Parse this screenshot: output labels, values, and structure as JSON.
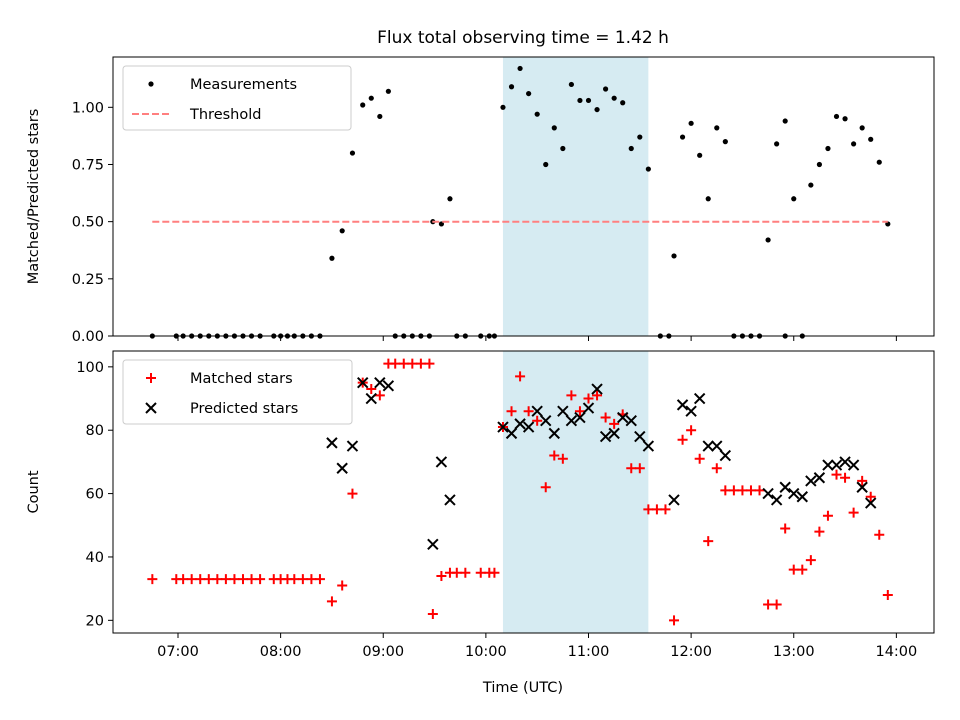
{
  "chart_data": {
    "title": "Flux total observing time = 1.42 h",
    "xlabel": "Time (UTC)",
    "x_tick_labels": [
      "07:00",
      "08:00",
      "09:00",
      "10:00",
      "11:00",
      "12:00",
      "13:00",
      "14:00"
    ],
    "highlight": {
      "start": "10:10",
      "end": "11:35",
      "color": "#add8e6"
    },
    "panels": [
      {
        "type": "scatter",
        "ylabel": "Matched/Predicted stars",
        "ylim": [
          0,
          1.22
        ],
        "y_ticks": [
          0.0,
          0.25,
          0.5,
          0.75,
          1.0
        ],
        "y_tick_labels": [
          "0.00",
          "0.25",
          "0.50",
          "0.75",
          "1.00"
        ],
        "legend": "top-left",
        "series": [
          {
            "name": "Measurements",
            "marker": "dot",
            "color": "#000000",
            "points": [
              [
                "06:45",
                0
              ],
              [
                "06:59",
                0
              ],
              [
                "07:03",
                0
              ],
              [
                "07:08",
                0
              ],
              [
                "07:13",
                0
              ],
              [
                "07:18",
                0
              ],
              [
                "07:23",
                0
              ],
              [
                "07:28",
                0
              ],
              [
                "07:33",
                0
              ],
              [
                "07:38",
                0
              ],
              [
                "07:43",
                0
              ],
              [
                "07:48",
                0
              ],
              [
                "07:56",
                0
              ],
              [
                "08:00",
                0
              ],
              [
                "08:04",
                0
              ],
              [
                "08:08",
                0
              ],
              [
                "08:13",
                0
              ],
              [
                "08:18",
                0
              ],
              [
                "08:23",
                0
              ],
              [
                "08:30",
                0.34
              ],
              [
                "08:36",
                0.46
              ],
              [
                "08:42",
                0.8
              ],
              [
                "08:48",
                1.01
              ],
              [
                "08:53",
                1.04
              ],
              [
                "08:58",
                0.96
              ],
              [
                "09:03",
                1.07
              ],
              [
                "09:07",
                0
              ],
              [
                "09:12",
                0
              ],
              [
                "09:17",
                0
              ],
              [
                "09:22",
                0
              ],
              [
                "09:27",
                0
              ],
              [
                "09:29",
                0.5
              ],
              [
                "09:34",
                0.49
              ],
              [
                "09:39",
                0.6
              ],
              [
                "09:43",
                0
              ],
              [
                "09:48",
                0
              ],
              [
                "09:57",
                0
              ],
              [
                "10:02",
                0
              ],
              [
                "10:05",
                0
              ],
              [
                "10:10",
                1.0
              ],
              [
                "10:15",
                1.09
              ],
              [
                "10:20",
                1.17
              ],
              [
                "10:25",
                1.06
              ],
              [
                "10:30",
                0.97
              ],
              [
                "10:35",
                0.75
              ],
              [
                "10:40",
                0.91
              ],
              [
                "10:45",
                0.82
              ],
              [
                "10:50",
                1.1
              ],
              [
                "10:55",
                1.03
              ],
              [
                "11:00",
                1.03
              ],
              [
                "11:05",
                0.99
              ],
              [
                "11:10",
                1.08
              ],
              [
                "11:15",
                1.04
              ],
              [
                "11:20",
                1.02
              ],
              [
                "11:25",
                0.82
              ],
              [
                "11:30",
                0.87
              ],
              [
                "11:35",
                0.73
              ],
              [
                "11:42",
                0
              ],
              [
                "11:47",
                0
              ],
              [
                "11:50",
                0.35
              ],
              [
                "11:55",
                0.87
              ],
              [
                "12:00",
                0.93
              ],
              [
                "12:05",
                0.79
              ],
              [
                "12:10",
                0.6
              ],
              [
                "12:15",
                0.91
              ],
              [
                "12:20",
                0.85
              ],
              [
                "12:25",
                0
              ],
              [
                "12:30",
                0
              ],
              [
                "12:35",
                0
              ],
              [
                "12:40",
                0
              ],
              [
                "12:55",
                0
              ],
              [
                "12:45",
                0.42
              ],
              [
                "12:50",
                0.84
              ],
              [
                "12:55",
                0.94
              ],
              [
                "13:00",
                0.6
              ],
              [
                "13:05",
                0
              ],
              [
                "13:10",
                0.66
              ],
              [
                "13:15",
                0.75
              ],
              [
                "13:20",
                0.82
              ],
              [
                "13:25",
                0.96
              ],
              [
                "13:30",
                0.95
              ],
              [
                "13:35",
                0.84
              ],
              [
                "13:40",
                0.91
              ],
              [
                "13:45",
                0.86
              ],
              [
                "13:50",
                0.76
              ],
              [
                "13:55",
                0.49
              ]
            ]
          },
          {
            "name": "Threshold",
            "marker": "dashed-line",
            "color": "#ff7f7f",
            "points": [
              [
                "06:45",
                0.5
              ],
              [
                "13:55",
                0.5
              ]
            ]
          }
        ]
      },
      {
        "type": "scatter",
        "ylabel": "Count",
        "ylim": [
          16,
          105
        ],
        "y_ticks": [
          20,
          40,
          60,
          80,
          100
        ],
        "y_tick_labels": [
          "20",
          "40",
          "60",
          "80",
          "100"
        ],
        "legend": "top-left",
        "series": [
          {
            "name": "Matched stars",
            "marker": "plus",
            "color": "#ff0000",
            "points": [
              [
                "06:45",
                33
              ],
              [
                "06:59",
                33
              ],
              [
                "07:03",
                33
              ],
              [
                "07:08",
                33
              ],
              [
                "07:13",
                33
              ],
              [
                "07:18",
                33
              ],
              [
                "07:23",
                33
              ],
              [
                "07:28",
                33
              ],
              [
                "07:33",
                33
              ],
              [
                "07:38",
                33
              ],
              [
                "07:43",
                33
              ],
              [
                "07:48",
                33
              ],
              [
                "07:56",
                33
              ],
              [
                "08:00",
                33
              ],
              [
                "08:04",
                33
              ],
              [
                "08:08",
                33
              ],
              [
                "08:13",
                33
              ],
              [
                "08:18",
                33
              ],
              [
                "08:23",
                33
              ],
              [
                "08:30",
                26
              ],
              [
                "08:36",
                31
              ],
              [
                "08:42",
                60
              ],
              [
                "08:48",
                95
              ],
              [
                "08:53",
                93
              ],
              [
                "08:58",
                91
              ],
              [
                "09:03",
                101
              ],
              [
                "09:07",
                101
              ],
              [
                "09:12",
                101
              ],
              [
                "09:17",
                101
              ],
              [
                "09:22",
                101
              ],
              [
                "09:27",
                101
              ],
              [
                "09:29",
                22
              ],
              [
                "09:34",
                34
              ],
              [
                "09:39",
                35
              ],
              [
                "09:43",
                35
              ],
              [
                "09:48",
                35
              ],
              [
                "09:57",
                35
              ],
              [
                "10:02",
                35
              ],
              [
                "10:05",
                35
              ],
              [
                "10:10",
                81
              ],
              [
                "10:15",
                86
              ],
              [
                "10:20",
                97
              ],
              [
                "10:25",
                86
              ],
              [
                "10:30",
                83
              ],
              [
                "10:35",
                62
              ],
              [
                "10:40",
                72
              ],
              [
                "10:45",
                71
              ],
              [
                "10:50",
                91
              ],
              [
                "10:55",
                86
              ],
              [
                "11:00",
                90
              ],
              [
                "11:05",
                91
              ],
              [
                "11:10",
                84
              ],
              [
                "11:15",
                82
              ],
              [
                "11:20",
                85
              ],
              [
                "11:25",
                68
              ],
              [
                "11:30",
                68
              ],
              [
                "11:35",
                55
              ],
              [
                "11:40",
                55
              ],
              [
                "11:45",
                55
              ],
              [
                "11:50",
                20
              ],
              [
                "11:55",
                77
              ],
              [
                "12:00",
                80
              ],
              [
                "12:05",
                71
              ],
              [
                "12:10",
                45
              ],
              [
                "12:15",
                68
              ],
              [
                "12:20",
                61
              ],
              [
                "12:25",
                61
              ],
              [
                "12:30",
                61
              ],
              [
                "12:35",
                61
              ],
              [
                "12:40",
                61
              ],
              [
                "12:45",
                25
              ],
              [
                "12:50",
                25
              ],
              [
                "12:55",
                49
              ],
              [
                "13:00",
                36
              ],
              [
                "13:05",
                36
              ],
              [
                "13:10",
                39
              ],
              [
                "13:15",
                48
              ],
              [
                "13:20",
                53
              ],
              [
                "13:25",
                66
              ],
              [
                "13:30",
                65
              ],
              [
                "13:35",
                54
              ],
              [
                "13:40",
                64
              ],
              [
                "13:45",
                59
              ],
              [
                "13:50",
                47
              ],
              [
                "13:55",
                28
              ]
            ]
          },
          {
            "name": "Predicted stars",
            "marker": "x",
            "color": "#000000",
            "points": [
              [
                "08:30",
                76
              ],
              [
                "08:36",
                68
              ],
              [
                "08:42",
                75
              ],
              [
                "08:48",
                95
              ],
              [
                "08:53",
                90
              ],
              [
                "08:58",
                95
              ],
              [
                "09:03",
                94
              ],
              [
                "09:29",
                44
              ],
              [
                "09:34",
                70
              ],
              [
                "09:39",
                58
              ],
              [
                "10:10",
                81
              ],
              [
                "10:15",
                79
              ],
              [
                "10:20",
                82
              ],
              [
                "10:25",
                81
              ],
              [
                "10:30",
                86
              ],
              [
                "10:35",
                83
              ],
              [
                "10:40",
                79
              ],
              [
                "10:45",
                86
              ],
              [
                "10:50",
                83
              ],
              [
                "10:55",
                84
              ],
              [
                "11:00",
                87
              ],
              [
                "11:05",
                93
              ],
              [
                "11:10",
                78
              ],
              [
                "11:15",
                79
              ],
              [
                "11:20",
                84
              ],
              [
                "11:25",
                83
              ],
              [
                "11:30",
                78
              ],
              [
                "11:35",
                75
              ],
              [
                "11:50",
                58
              ],
              [
                "11:55",
                88
              ],
              [
                "12:00",
                86
              ],
              [
                "12:05",
                90
              ],
              [
                "12:10",
                75
              ],
              [
                "12:15",
                75
              ],
              [
                "12:20",
                72
              ],
              [
                "12:45",
                60
              ],
              [
                "12:50",
                58
              ],
              [
                "12:55",
                62
              ],
              [
                "13:00",
                60
              ],
              [
                "13:05",
                59
              ],
              [
                "13:10",
                64
              ],
              [
                "13:15",
                65
              ],
              [
                "13:20",
                69
              ],
              [
                "13:25",
                69
              ],
              [
                "13:30",
                70
              ],
              [
                "13:35",
                69
              ],
              [
                "13:40",
                62
              ],
              [
                "13:45",
                57
              ]
            ]
          }
        ]
      }
    ]
  }
}
